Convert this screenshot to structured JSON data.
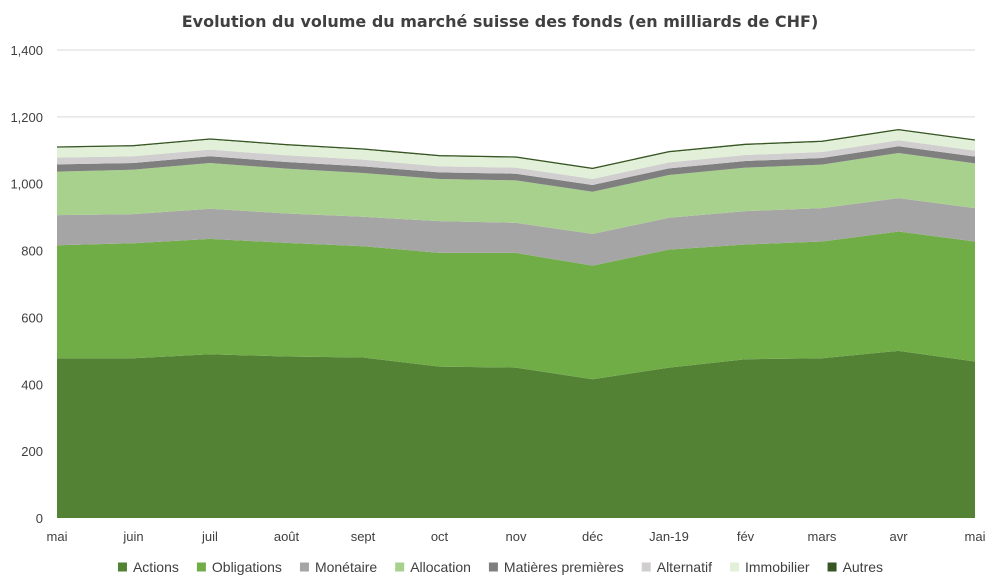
{
  "chart_data": {
    "type": "area",
    "stacked": true,
    "title": "Evolution du volume du marché suisse des fonds (en milliards de CHF)",
    "xlabel": "",
    "ylabel": "",
    "ylim": [
      0,
      1400
    ],
    "y_ticks": [
      0,
      200,
      400,
      600,
      800,
      1000,
      1200,
      1400
    ],
    "y_tick_labels": [
      "0",
      "200",
      "400",
      "600",
      "800",
      "1,000",
      "1,200",
      "1,400"
    ],
    "categories": [
      "mai",
      "juin",
      "juil",
      "août",
      "sept",
      "oct",
      "nov",
      "déc",
      "Jan-19",
      "fév",
      "mars",
      "avr",
      "mai"
    ],
    "grid": true,
    "legend_position": "bottom",
    "series": [
      {
        "name": "Actions",
        "color": "#548235",
        "values": [
          478,
          478,
          490,
          483,
          480,
          453,
          450,
          415,
          450,
          475,
          478,
          500,
          468
        ]
      },
      {
        "name": "Obligations",
        "color": "#70ad47",
        "values": [
          338,
          344,
          345,
          340,
          333,
          340,
          343,
          340,
          353,
          343,
          349,
          357,
          359
        ]
      },
      {
        "name": "Monétaire",
        "color": "#a5a5a5",
        "values": [
          90,
          87,
          90,
          88,
          88,
          95,
          90,
          95,
          95,
          100,
          100,
          100,
          100
        ]
      },
      {
        "name": "Allocation",
        "color": "#a9d18e",
        "values": [
          130,
          133,
          137,
          134,
          131,
          126,
          127,
          126,
          128,
          130,
          130,
          135,
          134
        ]
      },
      {
        "name": "Matières premières",
        "color": "#7f7f7f",
        "values": [
          22,
          20,
          20,
          20,
          20,
          20,
          20,
          20,
          20,
          20,
          20,
          20,
          20
        ]
      },
      {
        "name": "Alternatif",
        "color": "#d0cece",
        "values": [
          20,
          20,
          20,
          20,
          20,
          18,
          18,
          18,
          18,
          18,
          18,
          18,
          18
        ]
      },
      {
        "name": "Immobilier",
        "color": "#e2f0d9",
        "values": [
          30,
          30,
          30,
          30,
          30,
          30,
          30,
          30,
          30,
          30,
          30,
          30,
          30
        ]
      },
      {
        "name": "Autres",
        "color": "#375623",
        "values": [
          2,
          2,
          2,
          2,
          2,
          2,
          2,
          2,
          2,
          2,
          2,
          2,
          2
        ]
      }
    ]
  }
}
